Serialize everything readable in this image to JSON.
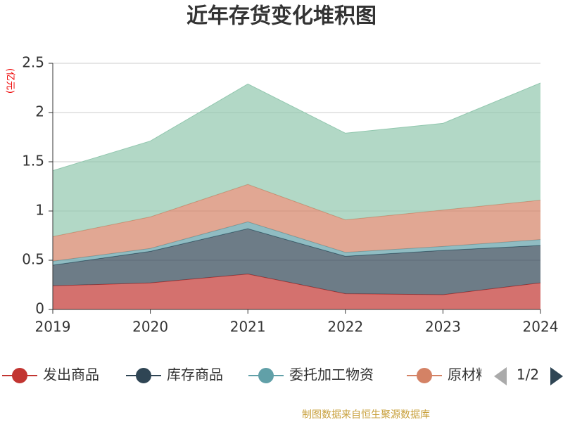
{
  "chart_data": {
    "type": "stacked-area",
    "title": "近年存货变化堆积图",
    "y_label": "(亿元)",
    "categories": [
      "2019",
      "2020",
      "2021",
      "2022",
      "2023",
      "2024"
    ],
    "series": [
      {
        "name": "发出商品",
        "color": "#c23531",
        "values": [
          0.24,
          0.27,
          0.36,
          0.16,
          0.15,
          0.27
        ]
      },
      {
        "name": "库存商品",
        "color": "#2f4554",
        "values": [
          0.21,
          0.32,
          0.46,
          0.38,
          0.45,
          0.38
        ]
      },
      {
        "name": "委托加工物资",
        "color": "#61a0a8",
        "values": [
          0.04,
          0.03,
          0.07,
          0.04,
          0.04,
          0.06
        ]
      },
      {
        "name": "原材料",
        "color": "#d48265",
        "values": [
          0.25,
          0.32,
          0.38,
          0.33,
          0.37,
          0.4
        ]
      },
      {
        "color": "#91c7ae",
        "values": [
          0.67,
          0.77,
          1.02,
          0.88,
          0.88,
          1.19
        ]
      }
    ],
    "ylim": [
      0,
      2.5
    ],
    "yticks": [
      0,
      0.5,
      1,
      1.5,
      2,
      2.5
    ],
    "grid": true,
    "legend_page": "1/2",
    "source": "制图数据来自恒生聚源数据库"
  }
}
